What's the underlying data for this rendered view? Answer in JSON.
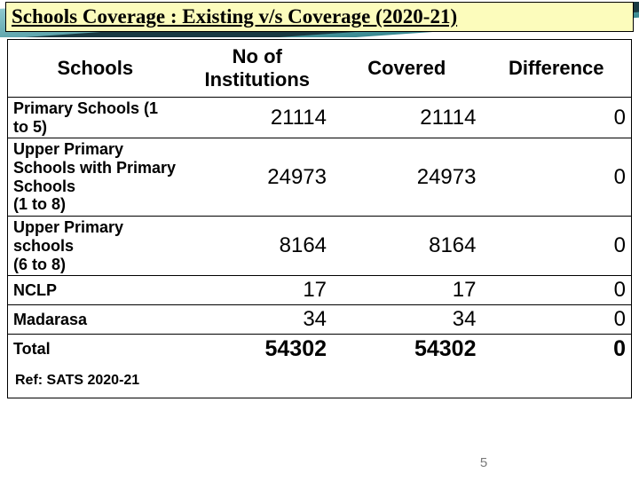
{
  "title": "Schools Coverage : Existing v/s Coverage  (2020-21)",
  "columns": [
    "Schools",
    "No of Institutions",
    "Covered",
    "Difference"
  ],
  "rows": [
    {
      "label": "Primary  Schools (1 to 5)",
      "inst": "21114",
      "cov": "21114",
      "diff": "0"
    },
    {
      "label": "Upper Primary Schools with Primary Schools\n (1 to 8)",
      "inst": "24973",
      "cov": "24973",
      "diff": "0"
    },
    {
      "label": "Upper Primary schools\n  (6 to 8)",
      "inst": "8164",
      "cov": "8164",
      "diff": "0"
    },
    {
      "label": "NCLP",
      "inst": "17",
      "cov": "17",
      "diff": "0"
    },
    {
      "label": "Madarasa",
      "inst": "34",
      "cov": "34",
      "diff": "0"
    }
  ],
  "total": {
    "label": "Total",
    "inst": "54302",
    "cov": "54302",
    "diff": "0"
  },
  "ref": "Ref: SATS 2020-21",
  "page": "5",
  "style": {
    "title_bg": "#fcfcbc",
    "title_fontsize": 23,
    "header_fontsize": 22,
    "label_fontsize": 18,
    "num_fontsize": 24,
    "total_num_fontsize": 25,
    "border_color": "#000000",
    "band_gradient_top": "#8fc9cf",
    "band_gradient_bottom": "#3a8a92",
    "band_dark": "#1a3a42",
    "col_widths_pct": [
      28,
      24,
      24,
      24
    ]
  }
}
